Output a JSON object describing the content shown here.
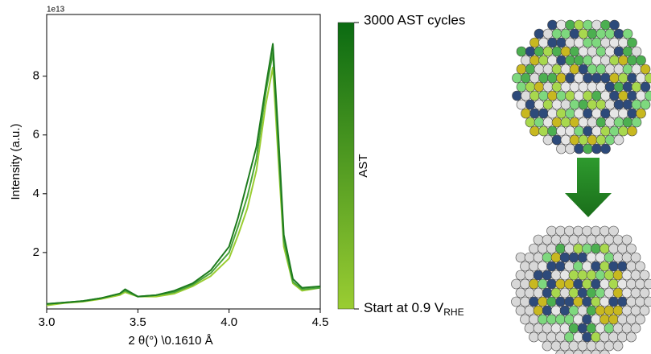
{
  "chart_data": {
    "type": "line",
    "x_label": "2 θ(°) \\0.1610 Å",
    "y_label": "Intensity (a.u.)",
    "y_offset_label": "1e13",
    "x": [
      3.0,
      3.1,
      3.2,
      3.3,
      3.4,
      3.43,
      3.5,
      3.6,
      3.7,
      3.8,
      3.9,
      4.0,
      4.05,
      4.1,
      4.15,
      4.2,
      4.24,
      4.27,
      4.3,
      4.35,
      4.4,
      4.5
    ],
    "series": [
      {
        "color": "#9acd32",
        "values": [
          0.2,
          0.28,
          0.33,
          0.42,
          0.55,
          0.65,
          0.5,
          0.5,
          0.6,
          0.85,
          1.2,
          1.8,
          2.6,
          3.5,
          4.8,
          7.0,
          8.3,
          5.2,
          2.2,
          0.95,
          0.7,
          0.8
        ]
      },
      {
        "color": "#4aa43a",
        "values": [
          0.25,
          0.3,
          0.35,
          0.45,
          0.6,
          0.7,
          0.5,
          0.55,
          0.65,
          0.9,
          1.3,
          2.0,
          2.9,
          3.9,
          5.2,
          7.4,
          8.8,
          5.6,
          2.4,
          1.0,
          0.75,
          0.8
        ]
      },
      {
        "color": "#1e7b1e",
        "values": [
          0.25,
          0.3,
          0.35,
          0.45,
          0.6,
          0.75,
          0.5,
          0.55,
          0.7,
          0.95,
          1.4,
          2.2,
          3.2,
          4.4,
          5.6,
          7.6,
          9.1,
          6.0,
          2.6,
          1.1,
          0.8,
          0.85
        ]
      }
    ],
    "xlim": [
      3.0,
      4.5
    ],
    "ylim": [
      0.08,
      10.1
    ],
    "xticks": [
      {
        "value": 3,
        "label": "3.0"
      },
      3.5,
      {
        "value": 4,
        "label": "4.0"
      },
      4.5
    ],
    "yticks": [
      2,
      4,
      6,
      8
    ],
    "colorbar": {
      "label": "AST",
      "colors": [
        "#9acd32",
        "#0b6b12"
      ],
      "top_label": "3000 AST cycles",
      "bottom_label": {
        "text": "Start at 0.9 V",
        "subscript": "RHE"
      }
    }
  }
}
